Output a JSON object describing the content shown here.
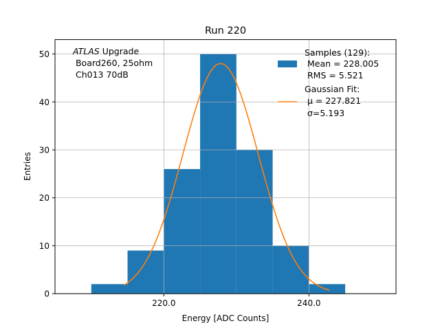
{
  "chart_data": {
    "type": "bar",
    "title": "Run 220",
    "xlabel": "Energy [ADC Counts]",
    "ylabel": "Entries",
    "xlim": [
      205,
      252
    ],
    "ylim": [
      0,
      53
    ],
    "x_ticks": [
      220,
      240
    ],
    "x_tick_labels": [
      "220.0",
      "240.0"
    ],
    "y_ticks": [
      0,
      10,
      20,
      30,
      40,
      50
    ],
    "y_tick_labels": [
      "0",
      "10",
      "20",
      "30",
      "40",
      "50"
    ],
    "grid": true,
    "histogram": {
      "name": "Samples (129):",
      "bin_edges": [
        210,
        215,
        220,
        225,
        230,
        235,
        240,
        245,
        250
      ],
      "counts": [
        2,
        9,
        26,
        50,
        30,
        10,
        2,
        0
      ],
      "color": "#1f77b4"
    },
    "fit": {
      "name": "Gaussian Fit:",
      "type": "gaussian",
      "amplitude": 48,
      "mu": 227.821,
      "sigma": 5.193,
      "x_range": [
        214.5,
        242.8
      ],
      "color": "#ff7f0e"
    },
    "annotation": {
      "line1_italic": "ATLAS",
      "line1_rest": " Upgrade",
      "line2": " Board260, 25ohm",
      "line3": " Ch013 70dB"
    },
    "legend": {
      "placement": "top-right",
      "samples_lines": [
        "Samples (129):",
        " Mean = 228.005",
        " RMS = 5.521"
      ],
      "fit_lines": [
        "Gaussian Fit:",
        " μ = 227.821",
        " σ=5.193"
      ]
    }
  }
}
